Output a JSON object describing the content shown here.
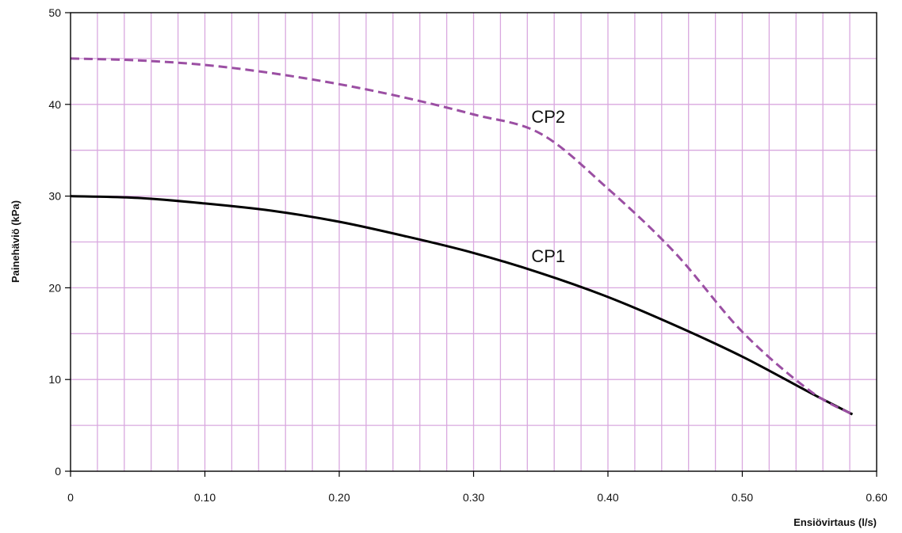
{
  "chart_data": {
    "type": "line",
    "title": "",
    "xlabel": "Ensiövirtaus (l/s)",
    "ylabel": "Painehäviö (kPa)",
    "xlim": [
      0,
      0.6
    ],
    "ylim": [
      0,
      50
    ],
    "x_ticks": [
      "0",
      "0.10",
      "0.20",
      "0.30",
      "0.40",
      "0.50",
      "0.60"
    ],
    "y_ticks": [
      "0",
      "10",
      "20",
      "30",
      "40",
      "50"
    ],
    "grid": true,
    "grid_color": "#d9a8df",
    "series": [
      {
        "name": "CP1",
        "color": "#000000",
        "dash": "solid",
        "x": [
          0,
          0.05,
          0.1,
          0.15,
          0.2,
          0.25,
          0.3,
          0.35,
          0.4,
          0.45,
          0.5,
          0.55,
          0.582
        ],
        "y": [
          30.0,
          29.8,
          29.2,
          28.4,
          27.2,
          25.6,
          23.8,
          21.6,
          19.0,
          15.9,
          12.5,
          8.6,
          6.2
        ]
      },
      {
        "name": "CP2",
        "color": "#9b4fa3",
        "dash": "dashed",
        "x": [
          0,
          0.05,
          0.1,
          0.15,
          0.2,
          0.25,
          0.3,
          0.35,
          0.4,
          0.45,
          0.5,
          0.55,
          0.582
        ],
        "y": [
          45.0,
          44.8,
          44.3,
          43.4,
          42.2,
          40.7,
          38.9,
          36.8,
          30.8,
          23.8,
          15.2,
          8.8,
          6.2
        ]
      }
    ]
  }
}
